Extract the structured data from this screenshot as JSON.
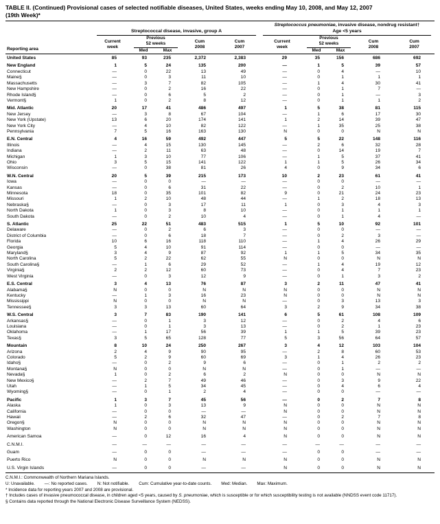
{
  "title": {
    "line1": "TABLE II. (Continued) Provisional cases of selected notifiable diseases, United States, weeks ending May 10, 2008, and May 12, 2007",
    "line2": "(19th Week)*"
  },
  "header": {
    "reporting_area": "Reporting area",
    "group1_title": "Streptococcal disease, invasive, group A",
    "group2_title_italic": "Streptococcus pneumoniae",
    "group2_title_rest": ", invasive disease, nondrug resistant†",
    "group2_subtitle": "Age <5 years",
    "current1": "Current",
    "current2": "week",
    "prev1": "Previous",
    "prev2": "52 weeks",
    "med": "Med",
    "max": "Max",
    "cum": "Cum",
    "y2008": "2008",
    "y2007": "2007"
  },
  "rows": [
    {
      "area": "United States",
      "bold": true,
      "v": [
        "85",
        "93",
        "235",
        "2,372",
        "2,383",
        "29",
        "35",
        "156",
        "686",
        "692"
      ]
    },
    {
      "area": "New England",
      "bold": true,
      "gap": true,
      "v": [
        "1",
        "5",
        "24",
        "135",
        "200",
        "—",
        "1",
        "5",
        "39",
        "57"
      ]
    },
    {
      "area": "Connecticut",
      "v": [
        "—",
        "0",
        "22",
        "13",
        "49",
        "—",
        "0",
        "4",
        "—",
        "10"
      ]
    },
    {
      "area": "Maine§",
      "v": [
        "—",
        "0",
        "3",
        "11",
        "10",
        "—",
        "0",
        "1",
        "1",
        "1"
      ]
    },
    {
      "area": "Massachusetts",
      "v": [
        "—",
        "3",
        "7",
        "82",
        "105",
        "—",
        "1",
        "4",
        "30",
        "41"
      ]
    },
    {
      "area": "New Hampshire",
      "v": [
        "—",
        "0",
        "2",
        "16",
        "22",
        "—",
        "0",
        "1",
        "7",
        "—"
      ]
    },
    {
      "area": "Rhode Island§",
      "v": [
        "—",
        "0",
        "6",
        "5",
        "2",
        "—",
        "0",
        "1",
        "—",
        "3"
      ]
    },
    {
      "area": "Vermont§",
      "v": [
        "1",
        "0",
        "2",
        "8",
        "12",
        "—",
        "0",
        "1",
        "1",
        "2"
      ]
    },
    {
      "area": "Mid. Atlantic",
      "bold": true,
      "gap": true,
      "v": [
        "20",
        "17",
        "41",
        "486",
        "497",
        "1",
        "5",
        "38",
        "81",
        "115"
      ]
    },
    {
      "area": "New Jersey",
      "v": [
        "—",
        "3",
        "8",
        "67",
        "104",
        "—",
        "1",
        "6",
        "17",
        "30"
      ]
    },
    {
      "area": "New York (Upstate)",
      "v": [
        "13",
        "6",
        "20",
        "174",
        "141",
        "1",
        "2",
        "14",
        "39",
        "47"
      ]
    },
    {
      "area": "New York City",
      "v": [
        "—",
        "4",
        "10",
        "82",
        "122",
        "—",
        "1",
        "35",
        "25",
        "38"
      ]
    },
    {
      "area": "Pennsylvania",
      "v": [
        "7",
        "5",
        "16",
        "163",
        "130",
        "N",
        "0",
        "0",
        "N",
        "N"
      ]
    },
    {
      "area": "E.N. Central",
      "bold": true,
      "gap": true,
      "v": [
        "4",
        "16",
        "59",
        "492",
        "447",
        "5",
        "5",
        "22",
        "148",
        "116"
      ]
    },
    {
      "area": "Illinois",
      "v": [
        "—",
        "4",
        "15",
        "130",
        "145",
        "—",
        "2",
        "6",
        "32",
        "28"
      ]
    },
    {
      "area": "Indiana",
      "v": [
        "—",
        "2",
        "11",
        "63",
        "48",
        "—",
        "0",
        "14",
        "19",
        "7"
      ]
    },
    {
      "area": "Michigan",
      "v": [
        "1",
        "3",
        "10",
        "77",
        "106",
        "—",
        "1",
        "5",
        "37",
        "41"
      ]
    },
    {
      "area": "Ohio",
      "v": [
        "3",
        "5",
        "15",
        "141",
        "122",
        "1",
        "1",
        "5",
        "26",
        "34"
      ]
    },
    {
      "area": "Wisconsin",
      "v": [
        "—",
        "0",
        "38",
        "81",
        "26",
        "4",
        "0",
        "9",
        "34",
        "6"
      ]
    },
    {
      "area": "W.N. Central",
      "bold": true,
      "gap": true,
      "v": [
        "20",
        "5",
        "39",
        "215",
        "173",
        "10",
        "2",
        "23",
        "61",
        "41"
      ]
    },
    {
      "area": "Iowa",
      "v": [
        "—",
        "0",
        "0",
        "—",
        "—",
        "—",
        "0",
        "0",
        "—",
        "—"
      ]
    },
    {
      "area": "Kansas",
      "v": [
        "—",
        "0",
        "6",
        "31",
        "22",
        "—",
        "0",
        "2",
        "10",
        "1"
      ]
    },
    {
      "area": "Minnesota",
      "v": [
        "18",
        "0",
        "35",
        "101",
        "82",
        "9",
        "0",
        "21",
        "24",
        "23"
      ]
    },
    {
      "area": "Missouri",
      "v": [
        "1",
        "2",
        "10",
        "48",
        "44",
        "—",
        "1",
        "2",
        "18",
        "13"
      ]
    },
    {
      "area": "Nebraska§",
      "v": [
        "—",
        "0",
        "3",
        "17",
        "11",
        "1",
        "0",
        "3",
        "4",
        "3"
      ]
    },
    {
      "area": "North Dakota",
      "v": [
        "1",
        "0",
        "3",
        "8",
        "10",
        "—",
        "0",
        "1",
        "1",
        "1"
      ]
    },
    {
      "area": "South Dakota",
      "v": [
        "—",
        "0",
        "2",
        "10",
        "4",
        "—",
        "0",
        "1",
        "4",
        "—"
      ]
    },
    {
      "area": "S. Atlantic",
      "bold": true,
      "gap": true,
      "v": [
        "25",
        "22",
        "51",
        "483",
        "515",
        "1",
        "5",
        "10",
        "92",
        "101"
      ]
    },
    {
      "area": "Delaware",
      "v": [
        "—",
        "0",
        "2",
        "6",
        "3",
        "—",
        "0",
        "0",
        "—",
        "—"
      ]
    },
    {
      "area": "District of Columbia",
      "v": [
        "—",
        "0",
        "6",
        "18",
        "7",
        "—",
        "0",
        "2",
        "3",
        "—"
      ]
    },
    {
      "area": "Florida",
      "v": [
        "10",
        "6",
        "16",
        "118",
        "110",
        "—",
        "1",
        "4",
        "26",
        "29"
      ]
    },
    {
      "area": "Georgia",
      "v": [
        "5",
        "4",
        "10",
        "91",
        "114",
        "—",
        "0",
        "0",
        "—",
        "—"
      ]
    },
    {
      "area": "Maryland§",
      "v": [
        "3",
        "4",
        "9",
        "87",
        "92",
        "1",
        "1",
        "5",
        "34",
        "35"
      ]
    },
    {
      "area": "North Carolina",
      "v": [
        "5",
        "2",
        "22",
        "62",
        "55",
        "N",
        "0",
        "0",
        "N",
        "N"
      ]
    },
    {
      "area": "South Carolina§",
      "v": [
        "—",
        "1",
        "6",
        "29",
        "52",
        "—",
        "1",
        "4",
        "19",
        "12"
      ]
    },
    {
      "area": "Virginia§",
      "v": [
        "2",
        "2",
        "12",
        "60",
        "73",
        "—",
        "0",
        "4",
        "7",
        "23"
      ]
    },
    {
      "area": "West Virginia",
      "v": [
        "—",
        "0",
        "3",
        "12",
        "9",
        "—",
        "0",
        "1",
        "3",
        "2"
      ]
    },
    {
      "area": "E.S. Central",
      "bold": true,
      "gap": true,
      "v": [
        "3",
        "4",
        "13",
        "76",
        "87",
        "3",
        "2",
        "11",
        "47",
        "41"
      ]
    },
    {
      "area": "Alabama§",
      "v": [
        "N",
        "0",
        "0",
        "N",
        "N",
        "N",
        "0",
        "0",
        "N",
        "N"
      ]
    },
    {
      "area": "Kentucky",
      "v": [
        "—",
        "1",
        "3",
        "16",
        "23",
        "N",
        "0",
        "0",
        "N",
        "N"
      ]
    },
    {
      "area": "Mississippi",
      "v": [
        "N",
        "0",
        "0",
        "N",
        "N",
        "—",
        "0",
        "3",
        "13",
        "3"
      ]
    },
    {
      "area": "Tennessee§",
      "v": [
        "3",
        "3",
        "13",
        "60",
        "64",
        "3",
        "2",
        "9",
        "34",
        "38"
      ]
    },
    {
      "area": "W.S. Central",
      "bold": true,
      "gap": true,
      "v": [
        "3",
        "7",
        "83",
        "190",
        "141",
        "6",
        "5",
        "61",
        "108",
        "109"
      ]
    },
    {
      "area": "Arkansas§",
      "v": [
        "—",
        "0",
        "1",
        "3",
        "12",
        "—",
        "0",
        "2",
        "4",
        "6"
      ]
    },
    {
      "area": "Louisiana",
      "v": [
        "—",
        "0",
        "1",
        "3",
        "13",
        "—",
        "0",
        "2",
        "1",
        "23"
      ]
    },
    {
      "area": "Oklahoma",
      "v": [
        "—",
        "1",
        "17",
        "56",
        "39",
        "1",
        "1",
        "5",
        "39",
        "23"
      ]
    },
    {
      "area": "Texas§",
      "v": [
        "3",
        "5",
        "65",
        "128",
        "77",
        "5",
        "3",
        "56",
        "64",
        "57"
      ]
    },
    {
      "area": "Mountain",
      "bold": true,
      "gap": true,
      "v": [
        "8",
        "10",
        "24",
        "250",
        "267",
        "3",
        "4",
        "12",
        "103",
        "104"
      ]
    },
    {
      "area": "Arizona",
      "v": [
        "2",
        "4",
        "9",
        "90",
        "95",
        "—",
        "2",
        "8",
        "60",
        "53"
      ]
    },
    {
      "area": "Colorado",
      "v": [
        "5",
        "2",
        "9",
        "60",
        "69",
        "3",
        "1",
        "4",
        "26",
        "23"
      ]
    },
    {
      "area": "Idaho§",
      "v": [
        "—",
        "0",
        "2",
        "9",
        "6",
        "—",
        "0",
        "1",
        "2",
        "2"
      ]
    },
    {
      "area": "Montana§",
      "v": [
        "N",
        "0",
        "0",
        "N",
        "N",
        "—",
        "0",
        "1",
        "—",
        "—"
      ]
    },
    {
      "area": "Nevada§",
      "v": [
        "1",
        "0",
        "2",
        "6",
        "2",
        "N",
        "0",
        "0",
        "N",
        "N"
      ]
    },
    {
      "area": "New Mexico§",
      "v": [
        "—",
        "2",
        "7",
        "49",
        "46",
        "—",
        "0",
        "3",
        "9",
        "22"
      ]
    },
    {
      "area": "Utah",
      "v": [
        "—",
        "1",
        "5",
        "34",
        "45",
        "—",
        "0",
        "4",
        "6",
        "4"
      ]
    },
    {
      "area": "Wyoming§",
      "v": [
        "—",
        "0",
        "1",
        "2",
        "4",
        "—",
        "0",
        "0",
        "—",
        "—"
      ]
    },
    {
      "area": "Pacific",
      "bold": true,
      "gap": true,
      "v": [
        "1",
        "3",
        "7",
        "45",
        "56",
        "—",
        "0",
        "2",
        "7",
        "8"
      ]
    },
    {
      "area": "Alaska",
      "v": [
        "1",
        "0",
        "3",
        "13",
        "9",
        "N",
        "0",
        "0",
        "N",
        "N"
      ]
    },
    {
      "area": "California",
      "v": [
        "—",
        "0",
        "0",
        "—",
        "—",
        "N",
        "0",
        "0",
        "N",
        "N"
      ]
    },
    {
      "area": "Hawaii",
      "v": [
        "—",
        "2",
        "6",
        "32",
        "47",
        "—",
        "0",
        "2",
        "7",
        "8"
      ]
    },
    {
      "area": "Oregon§",
      "v": [
        "N",
        "0",
        "0",
        "N",
        "N",
        "N",
        "0",
        "0",
        "N",
        "N"
      ]
    },
    {
      "area": "Washington",
      "v": [
        "N",
        "0",
        "0",
        "N",
        "N",
        "N",
        "0",
        "0",
        "N",
        "N"
      ]
    },
    {
      "area": "American Samoa",
      "gap": true,
      "v": [
        "—",
        "0",
        "12",
        "16",
        "4",
        "N",
        "0",
        "0",
        "N",
        "N"
      ]
    },
    {
      "area": "C.N.M.I.",
      "gap": true,
      "v": [
        "—",
        "—",
        "—",
        "—",
        "—",
        "—",
        "—",
        "—",
        "—",
        "—"
      ]
    },
    {
      "area": "Guam",
      "gap": true,
      "v": [
        "—",
        "0",
        "0",
        "—",
        "—",
        "—",
        "0",
        "0",
        "—",
        "—"
      ]
    },
    {
      "area": "Puerto Rico",
      "gap": true,
      "v": [
        "N",
        "0",
        "0",
        "N",
        "N",
        "N",
        "0",
        "0",
        "N",
        "N"
      ]
    },
    {
      "area": "U.S. Virgin Islands",
      "gap": true,
      "v": [
        "—",
        "0",
        "0",
        "—",
        "—",
        "N",
        "0",
        "0",
        "N",
        "N"
      ]
    }
  ],
  "footnotes": {
    "cnmi": "C.N.M.I.: Commonwealth of Northern Mariana Islands.",
    "legend": "U: Unavailable.        —: No reported cases.        N: Not notifiable.        Cum: Cumulative year-to-date counts.        Med: Median.        Max: Maximum.",
    "star": "* Incidence data for reporting years 2007 and 2008 are provisional.",
    "dagger_pre": "† Includes cases of invasive pneumococcal disease, in children aged <5 years, caused by ",
    "dagger_it": "S. pneumoniae",
    "dagger_post": ", which is susceptible or for which susceptibility testing is not available (NNDSS event code 11717).",
    "section": "§ Contains data reported through the National Electronic Disease Surveillance System (NEDSS)."
  }
}
